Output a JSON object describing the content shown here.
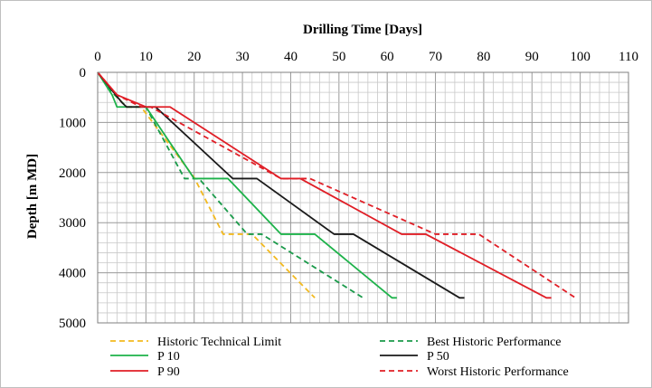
{
  "chart_data": {
    "type": "line",
    "title": "",
    "xlabel": "Drilling Time [Days]",
    "ylabel": "Depth [m MD]",
    "xlim": [
      0,
      110
    ],
    "ylim": [
      0,
      5000
    ],
    "y_inverted": true,
    "x_axis_position": "top",
    "x_ticks": [
      0,
      10,
      20,
      30,
      40,
      50,
      60,
      70,
      80,
      90,
      100,
      110
    ],
    "y_ticks": [
      0,
      1000,
      2000,
      3000,
      4000,
      5000
    ],
    "x_tick_labels": [
      "0",
      "10",
      "20",
      "30",
      "40",
      "50",
      "60",
      "70",
      "80",
      "90",
      "100",
      "110"
    ],
    "y_tick_labels": [
      "0",
      "1000",
      "2000",
      "3000",
      "4000",
      "5000"
    ],
    "grid": true,
    "legend_position": "bottom",
    "series": [
      {
        "name": "Historic Technical Limit",
        "color": "#f2b91f",
        "dash": "dashed",
        "x": [
          0,
          3,
          6,
          9,
          20,
          26,
          32,
          45
        ],
        "y": [
          0,
          400,
          690,
          690,
          2100,
          3230,
          3230,
          4500
        ]
      },
      {
        "name": "Best Historic Performance",
        "color": "#1a9a4a",
        "dash": "dashed",
        "x": [
          0,
          3,
          6,
          10,
          18,
          21,
          31,
          34,
          55
        ],
        "y": [
          0,
          400,
          690,
          690,
          2120,
          2120,
          3230,
          3230,
          4500
        ]
      },
      {
        "name": "P 10",
        "color": "#1db24a",
        "dash": "solid",
        "x": [
          0,
          3,
          4,
          10,
          20,
          27,
          38,
          45,
          61,
          62
        ],
        "y": [
          0,
          450,
          690,
          690,
          2120,
          2120,
          3230,
          3230,
          4500,
          4500
        ]
      },
      {
        "name": "P 50",
        "color": "#1a1a1a",
        "dash": "solid",
        "x": [
          0,
          5,
          6,
          12,
          28,
          33,
          49,
          53,
          75,
          76
        ],
        "y": [
          0,
          600,
          690,
          690,
          2120,
          2120,
          3230,
          3230,
          4500,
          4500
        ]
      },
      {
        "name": "P 90",
        "color": "#e01e26",
        "dash": "solid",
        "x": [
          0,
          4,
          10,
          15,
          38,
          42,
          63,
          68,
          93,
          94
        ],
        "y": [
          0,
          450,
          690,
          690,
          2120,
          2120,
          3230,
          3230,
          4500,
          4500
        ]
      },
      {
        "name": "Worst Historic Performance",
        "color": "#e01e26",
        "dash": "dashed",
        "x": [
          0,
          4,
          9,
          11,
          38,
          44,
          70,
          79,
          99
        ],
        "y": [
          0,
          450,
          690,
          690,
          2120,
          2120,
          3230,
          3230,
          4500
        ]
      }
    ]
  }
}
